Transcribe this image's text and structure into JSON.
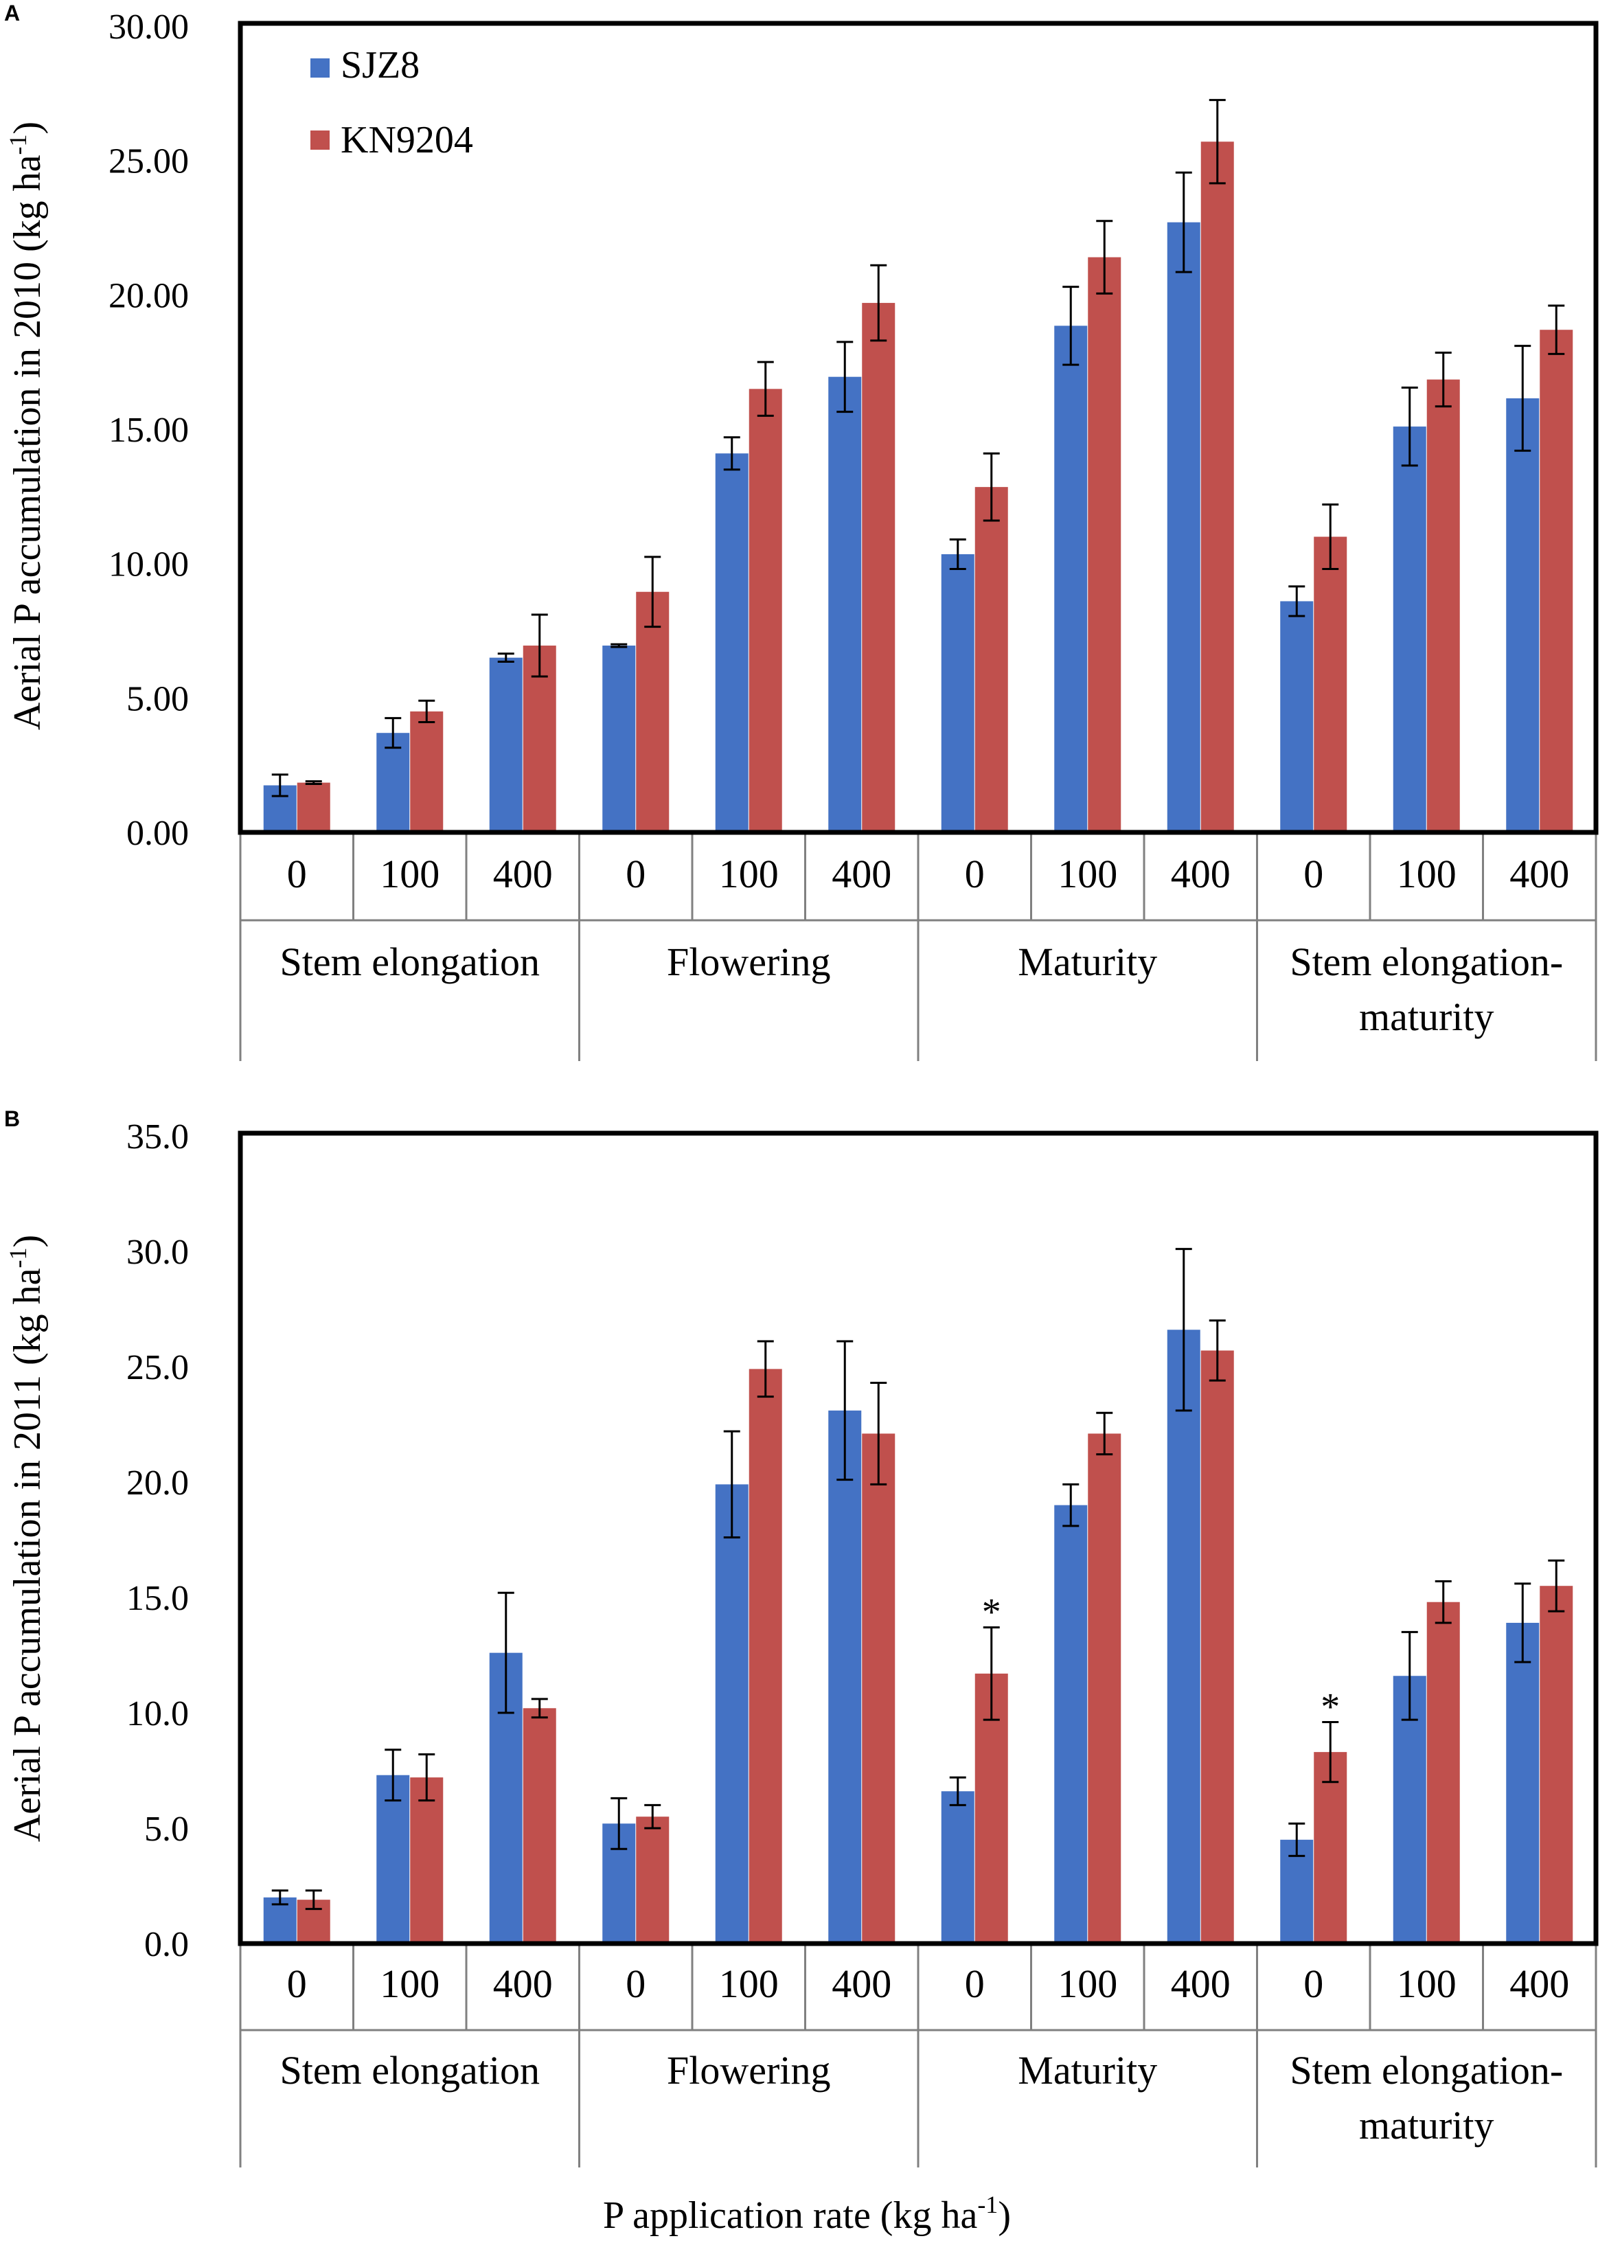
{
  "colors": {
    "sjz8": "#4472C4",
    "kn9204": "#C0504D",
    "frame": "#000000",
    "axis": "#808080"
  },
  "legend": {
    "series": [
      "SJZ8",
      "KN9204"
    ]
  },
  "x_axis_title": {
    "prefix": "P application rate (kg ha",
    "sup": "-1",
    "suffix": ")"
  },
  "chart_data": [
    {
      "panel_label": "A",
      "type": "bar",
      "ylabel": {
        "prefix": "Aerial P accumulation  in 2010 (kg ha",
        "sup": "-1",
        "suffix": ")"
      },
      "ylim": [
        0,
        30
      ],
      "y_ticks": [
        "0.00",
        "5.00",
        "10.00",
        "15.00",
        "20.00",
        "25.00",
        "30.00"
      ],
      "categories": [
        "0",
        "100",
        "400",
        "0",
        "100",
        "400",
        "0",
        "100",
        "400",
        "0",
        "100",
        "400"
      ],
      "groups": [
        {
          "lines": [
            "Stem elongation"
          ]
        },
        {
          "lines": [
            "Flowering"
          ]
        },
        {
          "lines": [
            "Maturity"
          ]
        },
        {
          "lines": [
            "Stem elongation-",
            "maturity"
          ]
        }
      ],
      "series": [
        {
          "name": "SJZ8",
          "values": [
            1.75,
            3.7,
            6.5,
            6.95,
            14.1,
            16.95,
            10.35,
            18.85,
            22.7,
            8.6,
            15.1,
            16.15
          ],
          "errors": [
            0.4,
            0.55,
            0.15,
            0.05,
            0.6,
            1.3,
            0.55,
            1.45,
            1.85,
            0.55,
            1.45,
            1.95
          ]
        },
        {
          "name": "KN9204",
          "values": [
            1.85,
            4.5,
            6.95,
            8.95,
            16.5,
            19.7,
            12.85,
            21.4,
            25.7,
            11.0,
            16.85,
            18.7
          ],
          "errors": [
            0.05,
            0.4,
            1.15,
            1.3,
            1.0,
            1.4,
            1.25,
            1.35,
            1.55,
            1.2,
            1.0,
            0.9
          ]
        }
      ],
      "annotations": []
    },
    {
      "panel_label": "B",
      "type": "bar",
      "ylabel": {
        "prefix": "Aerial P accumulation  in 2011 (kg ha",
        "sup": "-1",
        "suffix": ")"
      },
      "ylim": [
        0,
        35
      ],
      "y_ticks": [
        "0.0",
        "5.0",
        "10.0",
        "15.0",
        "20.0",
        "25.0",
        "30.0",
        "35.0"
      ],
      "categories": [
        "0",
        "100",
        "400",
        "0",
        "100",
        "400",
        "0",
        "100",
        "400",
        "0",
        "100",
        "400"
      ],
      "groups": [
        {
          "lines": [
            "Stem elongation"
          ]
        },
        {
          "lines": [
            "Flowering"
          ]
        },
        {
          "lines": [
            "Maturity"
          ]
        },
        {
          "lines": [
            "Stem elongation-",
            "maturity"
          ]
        }
      ],
      "series": [
        {
          "name": "SJZ8",
          "values": [
            2.0,
            7.3,
            12.6,
            5.2,
            19.9,
            23.1,
            6.6,
            19.0,
            26.6,
            4.5,
            11.6,
            13.9
          ],
          "errors": [
            0.3,
            1.1,
            2.6,
            1.1,
            2.3,
            3.0,
            0.6,
            0.9,
            3.5,
            0.7,
            1.9,
            1.7
          ]
        },
        {
          "name": "KN9204",
          "values": [
            1.9,
            7.2,
            10.2,
            5.5,
            24.9,
            22.1,
            11.7,
            22.1,
            25.7,
            8.3,
            14.8,
            15.5
          ],
          "errors": [
            0.4,
            1.0,
            0.4,
            0.5,
            1.2,
            2.2,
            2.0,
            0.9,
            1.3,
            1.3,
            0.9,
            1.1
          ]
        }
      ],
      "annotations": [
        {
          "category_index": 6,
          "series": "KN9204",
          "text": "*"
        },
        {
          "category_index": 9,
          "series": "KN9204",
          "text": "*"
        }
      ]
    }
  ]
}
